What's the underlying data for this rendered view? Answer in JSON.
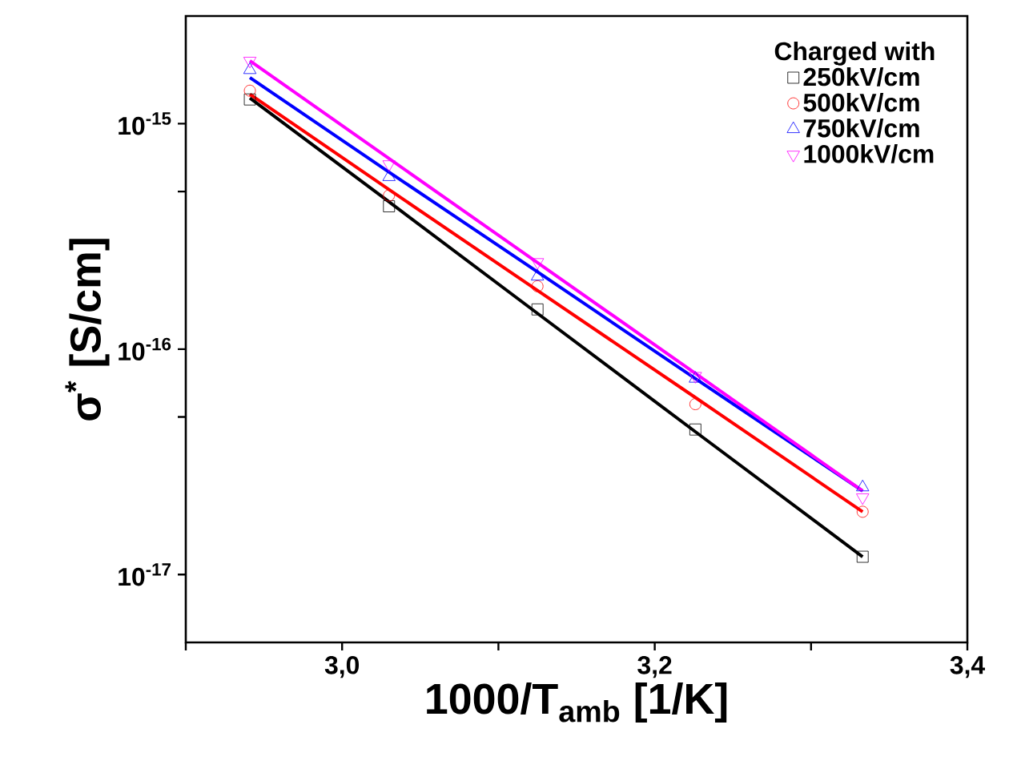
{
  "chart_data": {
    "type": "scatter",
    "xlabel": "1000/T$_{amb}$   [1/K]",
    "ylabel": "σ$^{*}$ [S/cm]",
    "legend_title": "Charged with",
    "legend": "top right",
    "log": "y",
    "grid": false,
    "xlim": [
      2.9,
      3.4
    ],
    "ylim": [
      5e-18,
      3e-15
    ],
    "xticks": [
      {
        "value": 2.9,
        "label": null
      },
      {
        "value": 3.0,
        "label": "3,0"
      },
      {
        "value": 3.1,
        "label": null
      },
      {
        "value": 3.2,
        "label": "3,2"
      },
      {
        "value": 3.3,
        "label": null
      },
      {
        "value": 3.4,
        "label": "3,4"
      }
    ],
    "yticks": [
      {
        "value": 1e-17,
        "label": "10$^{-17}$"
      },
      {
        "value": 5e-17,
        "label": null
      },
      {
        "value": 1e-16,
        "label": "10$^{-16}$"
      },
      {
        "value": 5e-16,
        "label": null
      },
      {
        "value": 1e-15,
        "label": "10$^{-15}$"
      }
    ],
    "x": [
      2.941,
      3.03,
      3.125,
      3.226,
      3.333
    ],
    "series": [
      {
        "name": "250kV/cm",
        "color": "#000000",
        "marker": "square",
        "values": [
          1.28e-15,
          4.3e-16,
          1.5e-16,
          4.4e-17,
          1.2e-17
        ]
      },
      {
        "name": "500kV/cm",
        "color": "#ff0000",
        "marker": "circle",
        "values": [
          1.4e-15,
          4.8e-16,
          1.9e-16,
          5.7e-17,
          1.9e-17
        ]
      },
      {
        "name": "750kV/cm",
        "color": "#0000ff",
        "marker": "triangle",
        "values": [
          1.73e-15,
          5.8e-16,
          2.1e-16,
          7.4e-17,
          2.44e-17
        ]
      },
      {
        "name": "1000kV/cm",
        "color": "#ff00ff",
        "marker": "triangle-down",
        "values": [
          1.9e-15,
          6.6e-16,
          2.43e-16,
          7.6e-17,
          2.2e-17
        ]
      },
      {
        "type": "line",
        "marker": "none",
        "color": "#000000",
        "values": [
          1.3e-15,
          4.5e-16,
          1.44e-16,
          4.3e-17,
          1.2e-17
        ]
      },
      {
        "type": "line",
        "marker": "none",
        "color": "#ff0000",
        "values": [
          1.35e-15,
          5.1e-16,
          1.82e-16,
          6.1e-17,
          1.9e-17
        ]
      },
      {
        "type": "line",
        "marker": "none",
        "color": "#0000ff",
        "values": [
          1.6e-15,
          6.1e-16,
          2.2e-16,
          7.4e-17,
          2.35e-17
        ]
      },
      {
        "type": "line",
        "marker": "none",
        "color": "#ff00ff",
        "values": [
          1.9e-15,
          7e-16,
          2.42e-16,
          7.8e-17,
          2.35e-17
        ]
      }
    ]
  }
}
